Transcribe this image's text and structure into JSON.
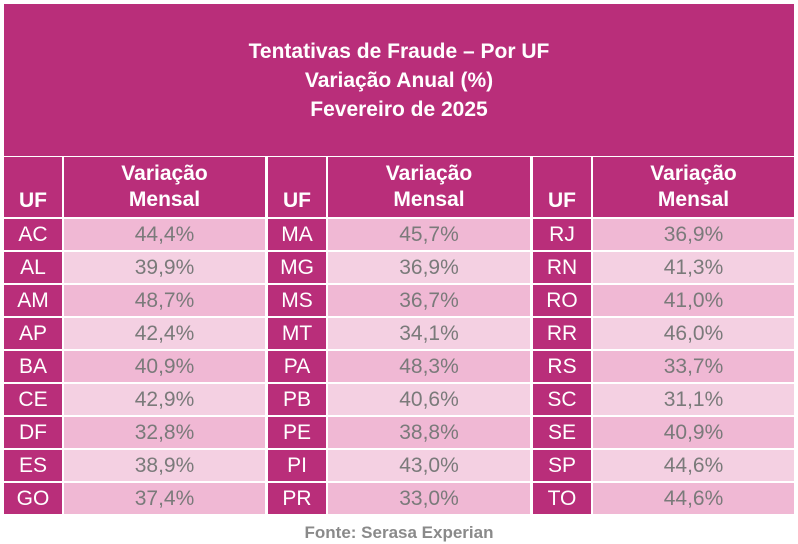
{
  "title_lines": [
    "Tentativas de Fraude – Por UF",
    "Variação Anual (%)",
    "Fevereiro de 2025"
  ],
  "header": {
    "uf": "UF",
    "value": "Variação\nMensal"
  },
  "source": "Fonte: Serasa Experian",
  "colors": {
    "header_bg": "#b92e7a",
    "row_dark": "#f0b8d4",
    "row_light": "#f4d0e2",
    "value_text": "#7a7a7a"
  },
  "chart_data": {
    "type": "table",
    "title": "Tentativas de Fraude – Por UF\nVariação Anual (%)\nFevereiro de 2025",
    "columns": [
      "UF",
      "Variação Mensal"
    ],
    "groups": [
      [
        {
          "uf": "AC",
          "value": "44,4%"
        },
        {
          "uf": "AL",
          "value": "39,9%"
        },
        {
          "uf": "AM",
          "value": "48,7%"
        },
        {
          "uf": "AP",
          "value": "42,4%"
        },
        {
          "uf": "BA",
          "value": "40,9%"
        },
        {
          "uf": "CE",
          "value": "42,9%"
        },
        {
          "uf": "DF",
          "value": "32,8%"
        },
        {
          "uf": "ES",
          "value": "38,9%"
        },
        {
          "uf": "GO",
          "value": "37,4%"
        }
      ],
      [
        {
          "uf": "MA",
          "value": "45,7%"
        },
        {
          "uf": "MG",
          "value": "36,9%"
        },
        {
          "uf": "MS",
          "value": "36,7%"
        },
        {
          "uf": "MT",
          "value": "34,1%"
        },
        {
          "uf": "PA",
          "value": "48,3%"
        },
        {
          "uf": "PB",
          "value": "40,6%"
        },
        {
          "uf": "PE",
          "value": "38,8%"
        },
        {
          "uf": "PI",
          "value": "43,0%"
        },
        {
          "uf": "PR",
          "value": "33,0%"
        }
      ],
      [
        {
          "uf": "RJ",
          "value": "36,9%"
        },
        {
          "uf": "RN",
          "value": "41,3%"
        },
        {
          "uf": "RO",
          "value": "41,0%"
        },
        {
          "uf": "RR",
          "value": "46,0%"
        },
        {
          "uf": "RS",
          "value": "33,7%"
        },
        {
          "uf": "SC",
          "value": "31,1%"
        },
        {
          "uf": "SE",
          "value": "40,9%"
        },
        {
          "uf": "SP",
          "value": "44,6%"
        },
        {
          "uf": "TO",
          "value": "44,6%"
        }
      ]
    ]
  }
}
